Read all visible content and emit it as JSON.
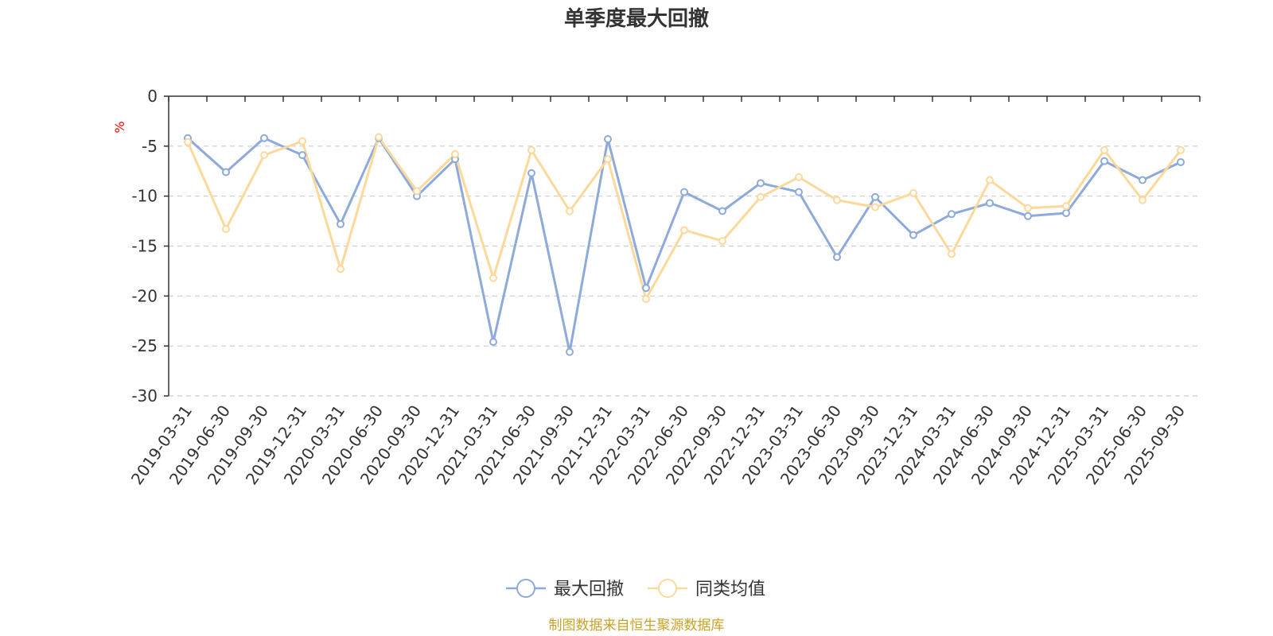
{
  "chart_data": {
    "type": "line",
    "title": "单季度最大回撤",
    "ylabel": "%",
    "ylim": [
      -30,
      0
    ],
    "yticks": [
      0,
      -5,
      -10,
      -15,
      -20,
      -25,
      -30
    ],
    "grid": true,
    "legend_position": "bottom-center",
    "categories": [
      "2019-03-31",
      "2019-06-30",
      "2019-09-30",
      "2019-12-31",
      "2020-03-31",
      "2020-06-30",
      "2020-09-30",
      "2020-12-31",
      "2021-03-31",
      "2021-06-30",
      "2021-09-30",
      "2021-12-31",
      "2022-03-31",
      "2022-06-30",
      "2022-09-30",
      "2022-12-31",
      "2023-03-31",
      "2023-06-30",
      "2023-09-30",
      "2023-12-31",
      "2024-03-31",
      "2024-06-30",
      "2024-09-30",
      "2024-12-31",
      "2025-03-31",
      "2025-06-30",
      "2025-09-30"
    ],
    "series": [
      {
        "name": "最大回撤",
        "color": "#8eaadb",
        "values": [
          -4.2,
          -7.6,
          -4.2,
          -5.9,
          -12.8,
          -4.2,
          -10.0,
          -6.3,
          -24.6,
          -7.7,
          -25.6,
          -4.3,
          -19.2,
          -9.6,
          -11.5,
          -8.7,
          -9.6,
          -16.1,
          -10.1,
          -13.9,
          -11.8,
          -10.7,
          -12.0,
          -11.7,
          -6.5,
          -8.4,
          -6.6
        ]
      },
      {
        "name": "同类均值",
        "color": "#fcd99a",
        "values": [
          -4.6,
          -13.3,
          -5.9,
          -4.5,
          -17.3,
          -4.1,
          -9.5,
          -5.8,
          -18.2,
          -5.4,
          -11.5,
          -6.3,
          -20.3,
          -13.4,
          -14.5,
          -10.1,
          -8.1,
          -10.4,
          -11.1,
          -9.7,
          -15.8,
          -8.4,
          -11.2,
          -11.0,
          -5.4,
          -10.4,
          -5.4
        ]
      }
    ]
  },
  "footer": {
    "source": "制图数据来自恒生聚源数据库",
    "source_color": "#c9a227"
  },
  "unit_color": "#ff0000"
}
